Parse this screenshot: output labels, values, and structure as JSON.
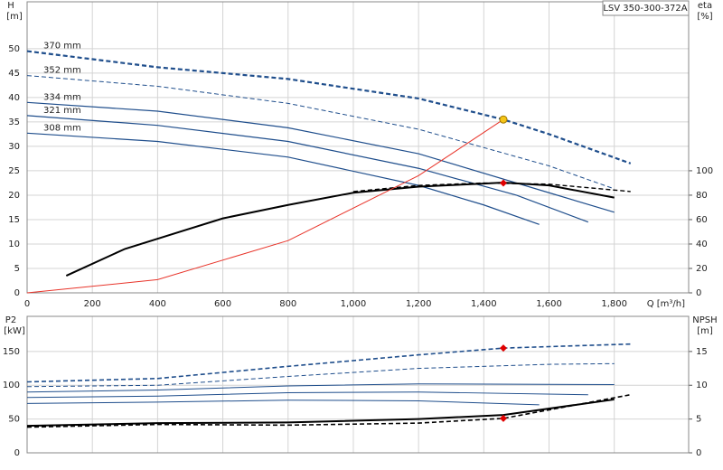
{
  "chart_data": [
    {
      "type": "line",
      "title": "LSV 350-300-372A",
      "y_label": "H",
      "y_unit": "[m]",
      "y2_label": "eta",
      "y2_unit": "[%]",
      "x_label": "Q [m³/h]",
      "xlim": [
        0,
        2028
      ],
      "xticks": [
        0,
        200,
        400,
        600,
        800,
        {
          "value": 1000,
          "label": "1,000"
        },
        {
          "value": 1200,
          "label": "1,200"
        },
        {
          "value": 1400,
          "label": "1,400"
        },
        {
          "value": 1600,
          "label": "1,600"
        },
        {
          "value": 1800,
          "label": "1,800"
        }
      ],
      "ylim": [
        0,
        59.6
      ],
      "yticks": [
        0,
        5,
        10,
        15,
        20,
        25,
        30,
        35,
        40,
        45,
        50
      ],
      "y2lim": [
        0,
        238.4
      ],
      "y2ticks": [
        0,
        20,
        40,
        60,
        80,
        100
      ],
      "grid": true,
      "series": [
        {
          "name": "370 mm",
          "color": "#1f4e8c",
          "dashed": true,
          "width": 2.2,
          "x": [
            0,
            400,
            800,
            1200,
            1460,
            1600,
            1850
          ],
          "values": [
            49.5,
            46.2,
            43.8,
            39.8,
            35.5,
            32.5,
            26.5
          ]
        },
        {
          "name": "352 mm",
          "color": "#1f4e8c",
          "dashed": true,
          "width": 1,
          "x": [
            0,
            400,
            800,
            1200,
            1600,
            1800
          ],
          "values": [
            44.5,
            42.3,
            38.8,
            33.5,
            26,
            21.3
          ]
        },
        {
          "name": "334 mm",
          "color": "#1f4e8c",
          "width": 1.2,
          "x": [
            0,
            400,
            800,
            1200,
            1600,
            1800
          ],
          "values": [
            39,
            37.2,
            33.8,
            28.5,
            20.5,
            16.5
          ]
        },
        {
          "name": "321 mm",
          "color": "#1f4e8c",
          "width": 1.2,
          "x": [
            0,
            400,
            800,
            1200,
            1500,
            1720
          ],
          "values": [
            36.3,
            34.3,
            31,
            25.5,
            20,
            14.5
          ]
        },
        {
          "name": "308 mm",
          "color": "#1f4e8c",
          "width": 1.2,
          "x": [
            0,
            400,
            800,
            1200,
            1400,
            1570
          ],
          "values": [
            32.7,
            31,
            27.8,
            22,
            18,
            14
          ]
        },
        {
          "axis": "y2",
          "color": "#000000",
          "width": 2,
          "x": [
            120,
            300,
            600,
            800,
            1000,
            1200,
            1400,
            1460,
            1600,
            1800
          ],
          "values": [
            14,
            36,
            61,
            72,
            82,
            87,
            89.5,
            90.3,
            88,
            78
          ]
        },
        {
          "axis": "y2",
          "color": "#000000",
          "dashed": true,
          "width": 1.4,
          "x": [
            1000,
            1200,
            1400,
            1600,
            1850
          ],
          "values": [
            83,
            88,
            90,
            89,
            83
          ]
        },
        {
          "color": "#e8342a",
          "width": 1,
          "x": [
            0,
            400,
            800,
            1200,
            1460
          ],
          "values": [
            0,
            2.7,
            10.7,
            24,
            35.5
          ]
        }
      ],
      "markers": [
        {
          "x": 1460,
          "y": 35.5,
          "color": "#f5c518",
          "shape": "circle"
        },
        {
          "x": 1460,
          "y": 90,
          "axis": "y2",
          "color": "#e00000",
          "shape": "diamond"
        }
      ]
    },
    {
      "type": "line",
      "y_label": "P2",
      "y_unit": "[kW]",
      "y2_label": "NPSH",
      "y2_unit": "[m]",
      "xlim": [
        0,
        2028
      ],
      "xticks": [
        0,
        200,
        400,
        600,
        800,
        1000,
        1200,
        1400,
        1600,
        1800
      ],
      "ylim": [
        0,
        202
      ],
      "yticks": [
        0,
        50,
        100,
        150
      ],
      "y2lim": [
        0,
        20.2
      ],
      "y2ticks": [
        0,
        5,
        10,
        15
      ],
      "grid": true,
      "series": [
        {
          "color": "#1f4e8c",
          "dashed": true,
          "width": 1.6,
          "x": [
            0,
            400,
            800,
            1200,
            1460,
            1850
          ],
          "values": [
            105,
            110,
            128,
            145,
            155,
            161
          ]
        },
        {
          "color": "#1f4e8c",
          "dashed": true,
          "width": 1,
          "x": [
            0,
            400,
            800,
            1200,
            1600,
            1800
          ],
          "values": [
            98,
            100,
            113,
            125,
            131,
            132
          ]
        },
        {
          "color": "#1f4e8c",
          "width": 1,
          "x": [
            0,
            400,
            800,
            1200,
            1800
          ],
          "values": [
            90,
            93,
            99,
            102,
            101
          ]
        },
        {
          "color": "#1f4e8c",
          "width": 1,
          "x": [
            0,
            400,
            800,
            1200,
            1720
          ],
          "values": [
            82,
            84,
            89,
            90,
            86
          ]
        },
        {
          "color": "#1f4e8c",
          "width": 1,
          "x": [
            0,
            400,
            800,
            1200,
            1570
          ],
          "values": [
            73,
            75,
            78,
            77,
            71
          ]
        },
        {
          "axis": "y2",
          "color": "#000000",
          "width": 2,
          "x": [
            0,
            400,
            800,
            1200,
            1460,
            1800
          ],
          "values": [
            4,
            4.4,
            4.5,
            5,
            5.6,
            7.9
          ]
        },
        {
          "axis": "y2",
          "color": "#000000",
          "dashed": true,
          "width": 1.6,
          "x": [
            0,
            400,
            800,
            1200,
            1460,
            1850
          ],
          "values": [
            3.8,
            4.2,
            4.1,
            4.4,
            5.1,
            8.6
          ]
        }
      ],
      "markers": [
        {
          "x": 1460,
          "y": 155,
          "color": "#e00000",
          "shape": "diamond"
        },
        {
          "x": 1460,
          "y": 5.1,
          "axis": "y2",
          "color": "#e00000",
          "shape": "diamond"
        }
      ]
    }
  ]
}
